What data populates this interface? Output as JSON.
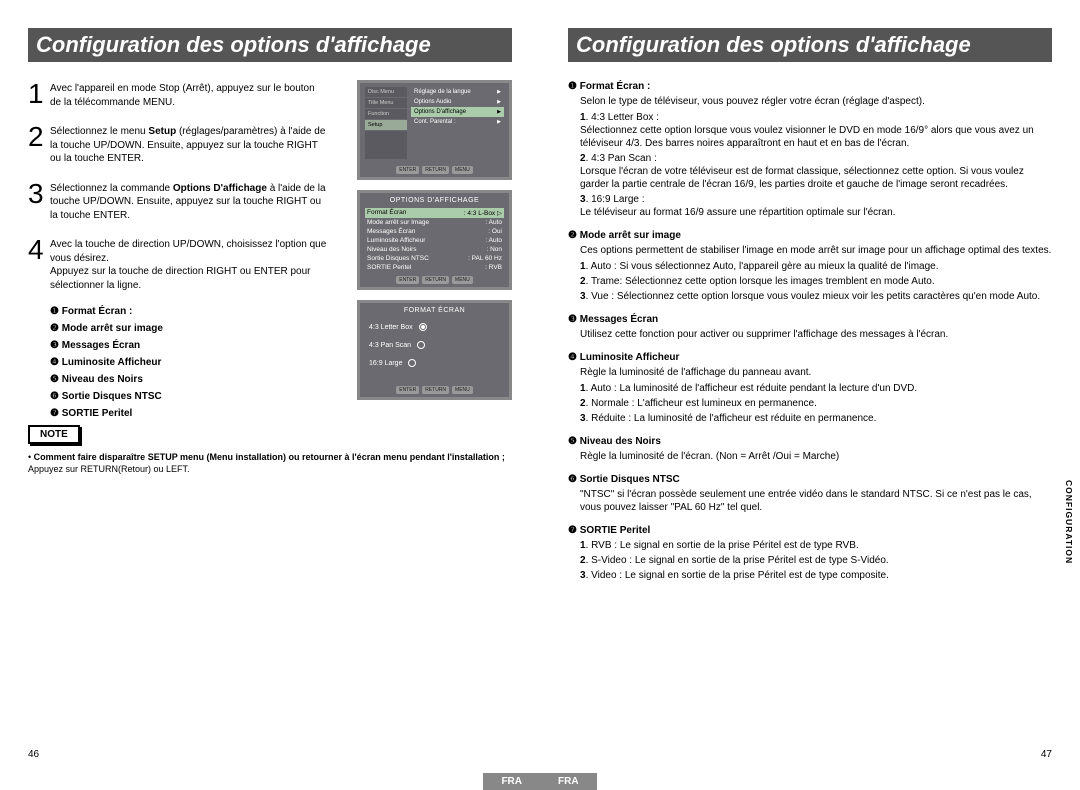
{
  "title": "Configuration des options d'affichage",
  "lang_tab": "FRA",
  "side_tab": "CONFIGURATION",
  "page_left": "46",
  "page_right": "47",
  "steps": [
    {
      "n": "1",
      "text": "Avec l'appareil en mode Stop (Arrêt), appuyez sur le bouton de la télécommande MENU."
    },
    {
      "n": "2",
      "text": "Sélectionnez le menu <b>Setup</b> (réglages/paramètres) à l'aide de la touche UP/DOWN. Ensuite, appuyez sur la touche RIGHT ou la touche ENTER."
    },
    {
      "n": "3",
      "text": "Sélectionnez la commande <b>Options D'affichage</b> à l'aide de la touche UP/DOWN. Ensuite, appuyez sur la touche RIGHT ou la touche ENTER."
    },
    {
      "n": "4",
      "text": "Avec la touche de direction UP/DOWN, choisissez l'option que vous désirez.<br>Appuyez sur la touche de direction RIGHT ou ENTER pour sélectionner la ligne."
    }
  ],
  "summary": [
    "❶  Format Écran :",
    "❷  Mode arrêt sur image",
    "❸  Messages Écran",
    "❹  Luminosite Afficheur",
    "❺  Niveau des Noirs",
    "❻  Sortie Disques NTSC",
    "❼  SORTIE Peritel"
  ],
  "note_label": "NOTE",
  "note_bold": "Comment faire disparaître SETUP menu (Menu installation) ou retourner à l'écran menu pendant l'installation ;",
  "note_rest": " Appuyez sur RETURN(Retour) ou LEFT.",
  "screen1": {
    "dvd": "DVD",
    "side": [
      "Disc Menu",
      "Title Menu",
      "Function",
      "Setup"
    ],
    "main": [
      "Réglage de la langue",
      "Options Audio",
      "Options D'affichage",
      "Cont. Parental :"
    ],
    "hl": 2,
    "btns": [
      "ENTER",
      "RETURN",
      "MENU"
    ]
  },
  "screen2": {
    "hdr": "OPTIONS D'AFFICHAGE",
    "rows": [
      [
        "Format Écran",
        ": 4:3 L-Box"
      ],
      [
        "Mode arrêt sur Image",
        ": Auto"
      ],
      [
        "Messages Écran",
        ": Oui"
      ],
      [
        "Luminosite Afficheur",
        ": Auto"
      ],
      [
        "Niveau des Noirs",
        ": Non"
      ],
      [
        "Sortie Disques NTSC",
        ": PAL 60 Hz"
      ],
      [
        "SORTIE Peritel",
        ": RVB"
      ]
    ],
    "btns": [
      "ENTER",
      "RETURN",
      "MENU"
    ]
  },
  "screen3": {
    "hdr": "FORMAT ÉCRAN",
    "opts": [
      "4:3 Letter Box",
      "4:3 Pan Scan",
      "16:9 Large"
    ],
    "sel": 0,
    "btns": [
      "ENTER",
      "RETURN",
      "MENU"
    ]
  },
  "right": [
    {
      "h": "❶  Format Écran :",
      "body": "Selon le type de téléviseur, vous pouvez régler votre écran (réglage d'aspect).",
      "subs": [
        {
          "b": "1",
          "t": ". 4:3 Letter Box :",
          "d": "Sélectionnez cette option lorsque vous voulez visionner le DVD en mode 16/9° alors que vous avez un téléviseur 4/3. Des barres noires apparaîtront en haut et en bas de l'écran."
        },
        {
          "b": "2",
          "t": ". 4:3 Pan Scan :",
          "d": "Lorsque l'écran de votre téléviseur est de format classique, sélectionnez cette option. Si vous voulez garder la partie centrale de l'écran 16/9, les parties droite et gauche de l'image seront recadrées."
        },
        {
          "b": "3",
          "t": ". 16:9 Large :",
          "d": "Le téléviseur au format 16/9 assure une répartition optimale sur l'écran."
        }
      ]
    },
    {
      "h": "❷  Mode arrêt sur image",
      "body": "Ces options permettent de stabiliser l'image en mode arrêt sur image pour un affichage optimal des textes.",
      "subs": [
        {
          "b": "1",
          "t": ". Auto : Si vous sélectionnez Auto, l'appareil gère au mieux la qualité de l'image."
        },
        {
          "b": "2",
          "t": ". Trame: Sélectionnez cette option lorsque les images tremblent en mode Auto."
        },
        {
          "b": "3",
          "t": ". Vue : Sélectionnez cette option lorsque vous voulez mieux voir les petits caractères qu'en mode Auto."
        }
      ]
    },
    {
      "h": "❸  Messages Écran",
      "body": "Utilisez cette fonction pour activer ou supprimer l'affichage des messages à l'écran."
    },
    {
      "h": "❹  Luminosite Afficheur",
      "body": "Règle la luminosité de l'affichage du panneau avant.",
      "subs": [
        {
          "b": "1",
          "t": ". Auto : La luminosité de l'afficheur est réduite pendant la lecture d'un DVD."
        },
        {
          "b": "2",
          "t": ". Normale : L'afficheur est lumineux en permanence."
        },
        {
          "b": "3",
          "t": ". Réduite : La luminosité de l'afficheur est réduite en permanence."
        }
      ]
    },
    {
      "h": "❺  Niveau des Noirs",
      "body": "Règle la luminosité de l'écran. (Non =  Arrêt /Oui = Marche)"
    },
    {
      "h": "❻  Sortie Disques NTSC",
      "body": "\"NTSC\" si l'écran possède seulement une entrée vidéo dans le standard NTSC. Si ce n'est pas le cas, vous pouvez laisser \"PAL 60 Hz\" tel quel."
    },
    {
      "h": "❼  SORTIE Peritel",
      "subs": [
        {
          "b": "1",
          "t": ". RVB : Le signal en sortie de la prise Péritel est de type RVB."
        },
        {
          "b": "2",
          "t": ". S-Video : Le signal en sortie de la prise Péritel est de type S-Vidéo."
        },
        {
          "b": "3",
          "t": ". Video : Le signal en sortie de la prise Péritel est de type composite."
        }
      ]
    }
  ]
}
